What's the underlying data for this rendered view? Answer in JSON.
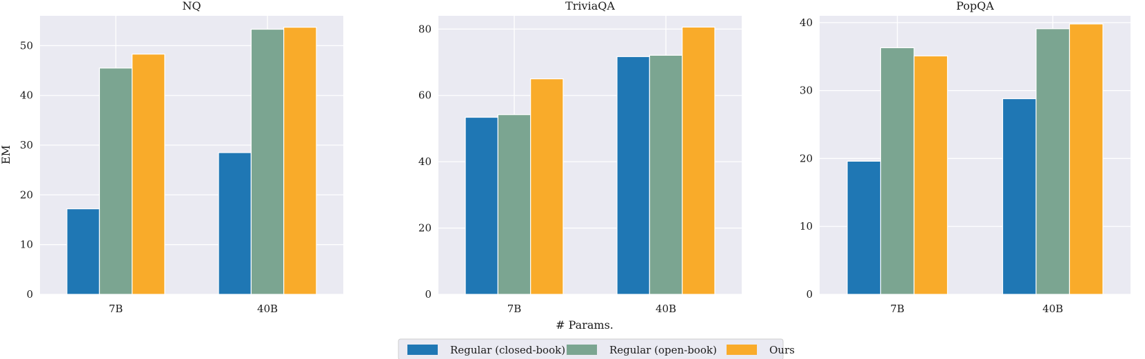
{
  "colors": {
    "background": "#EAEAF2",
    "grid": "#FFFFFF",
    "series": [
      "#1F77B4",
      "#7BA591",
      "#F9AB2A"
    ]
  },
  "figure": {
    "xlabel": "# Params.",
    "ylabel": "EM"
  },
  "legend": {
    "placement": "bottom-center",
    "entries": [
      "Regular (closed-book)",
      "Regular (open-book)",
      "Ours"
    ]
  },
  "chart_data": [
    {
      "type": "bar",
      "title": "NQ",
      "categories": [
        "7B",
        "40B"
      ],
      "ylim": [
        0,
        56
      ],
      "yticks": [
        0,
        10,
        20,
        30,
        40,
        50
      ],
      "grid": true,
      "series": [
        {
          "name": "Regular (closed-book)",
          "values": [
            17.2,
            28.5
          ]
        },
        {
          "name": "Regular (open-book)",
          "values": [
            45.5,
            53.3
          ]
        },
        {
          "name": "Ours",
          "values": [
            48.3,
            53.7
          ]
        }
      ]
    },
    {
      "type": "bar",
      "title": "TriviaQA",
      "categories": [
        "7B",
        "40B"
      ],
      "ylim": [
        0,
        84
      ],
      "yticks": [
        0,
        20,
        40,
        60,
        80
      ],
      "grid": true,
      "series": [
        {
          "name": "Regular (closed-book)",
          "values": [
            53.4,
            71.7
          ]
        },
        {
          "name": "Regular (open-book)",
          "values": [
            54.2,
            72.1
          ]
        },
        {
          "name": "Ours",
          "values": [
            65.0,
            80.6
          ]
        }
      ]
    },
    {
      "type": "bar",
      "title": "PopQA",
      "categories": [
        "7B",
        "40B"
      ],
      "ylim": [
        0,
        41
      ],
      "yticks": [
        0,
        10,
        20,
        30,
        40
      ],
      "grid": true,
      "series": [
        {
          "name": "Regular (closed-book)",
          "values": [
            19.6,
            28.8
          ]
        },
        {
          "name": "Regular (open-book)",
          "values": [
            36.3,
            39.1
          ]
        },
        {
          "name": "Ours",
          "values": [
            35.1,
            39.8
          ]
        }
      ]
    }
  ]
}
